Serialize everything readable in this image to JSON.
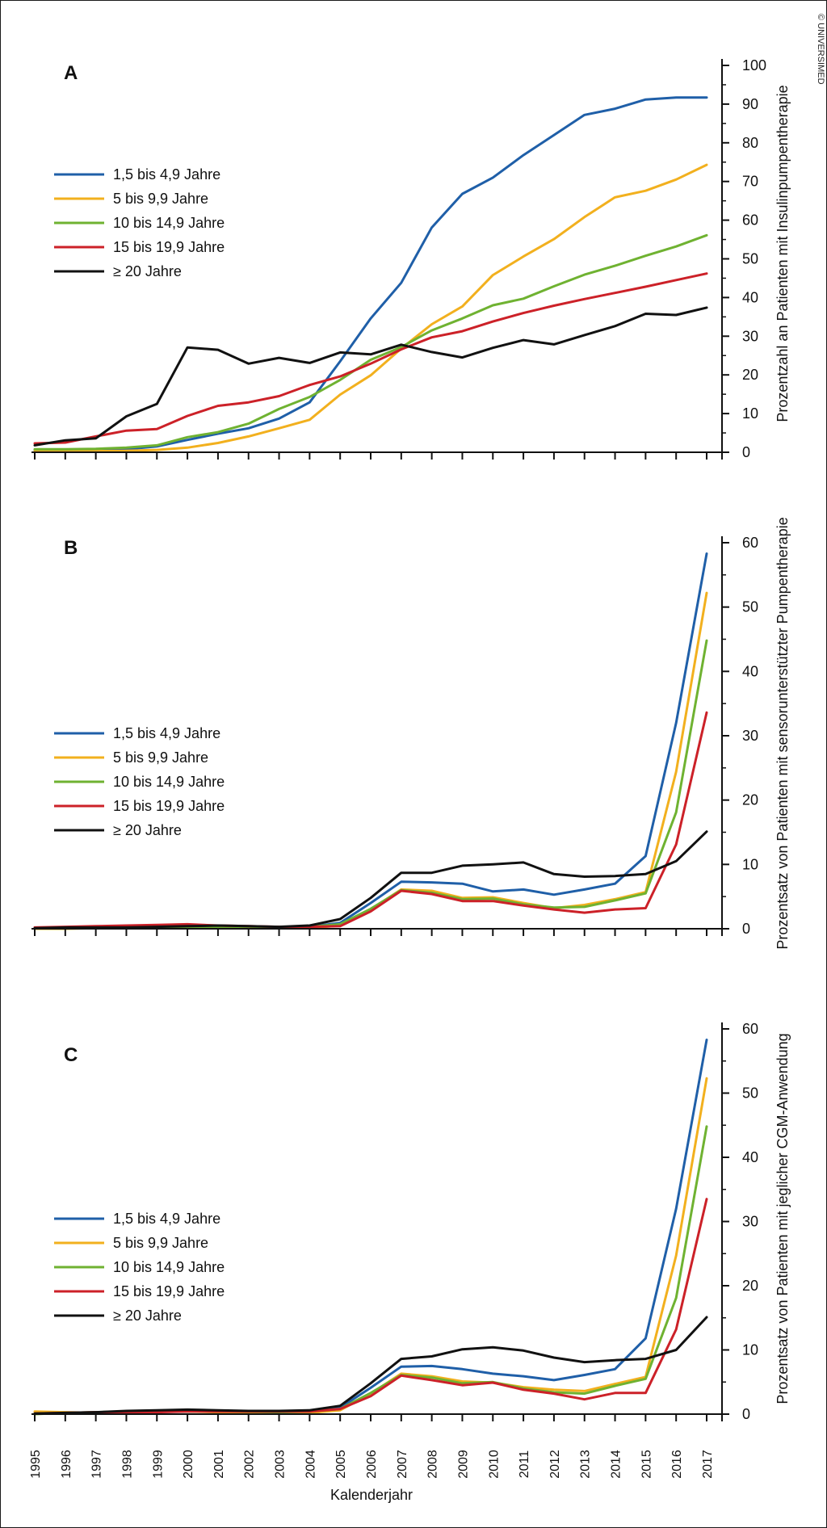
{
  "copyright": "© UNIVERSIMED",
  "chart_data": [
    {
      "type": "line",
      "panel": "A",
      "ylabel": "Prozentzahl an Patienten mit Insulinpumpentherapie",
      "xlabel": "",
      "ylim": [
        0,
        100
      ],
      "yticks": [
        0,
        10,
        20,
        30,
        40,
        50,
        60,
        70,
        80,
        90,
        100
      ],
      "legend_position": "left",
      "x": [
        1995,
        1996,
        1997,
        1998,
        1999,
        2000,
        2001,
        2002,
        2003,
        2004,
        2005,
        2006,
        2007,
        2008,
        2009,
        2010,
        2011,
        2012,
        2013,
        2014,
        2015,
        2016,
        2017
      ],
      "series": [
        {
          "name": "1,5 bis 4,9 Jahre",
          "color": "#1f5fa8",
          "values": [
            0.5,
            0.5,
            0.5,
            0.8,
            1.5,
            3.2,
            4.8,
            6.2,
            8.7,
            12.9,
            23.5,
            34.6,
            43.8,
            58.1,
            66.8,
            71.0,
            76.8,
            82.0,
            87.2,
            88.8,
            91.2,
            91.7,
            91.7
          ]
        },
        {
          "name": "5 bis 9,9 Jahre",
          "color": "#f2b01e",
          "values": [
            0.3,
            0.3,
            0.3,
            0.4,
            0.6,
            1.2,
            2.4,
            4.1,
            6.2,
            8.4,
            14.9,
            19.9,
            26.8,
            33.1,
            37.7,
            45.8,
            50.6,
            55.1,
            60.8,
            65.9,
            67.6,
            70.5,
            74.3
          ]
        },
        {
          "name": "10 bis 14,9 Jahre",
          "color": "#6fb231",
          "values": [
            0.8,
            0.8,
            0.9,
            1.2,
            1.8,
            3.9,
            5.2,
            7.4,
            11.2,
            14.3,
            18.7,
            23.9,
            27.2,
            31.5,
            34.6,
            38.0,
            39.7,
            42.9,
            45.9,
            48.2,
            50.8,
            53.2,
            56.1
          ]
        },
        {
          "name": "15 bis 19,9 Jahre",
          "color": "#cc2128",
          "values": [
            2.3,
            2.5,
            4.1,
            5.6,
            6.0,
            9.4,
            12.0,
            12.9,
            14.5,
            17.4,
            19.6,
            22.9,
            26.6,
            29.7,
            31.3,
            33.8,
            36.0,
            37.9,
            39.6,
            41.2,
            42.8,
            44.5,
            46.2
          ]
        },
        {
          "name": "≥ 20 Jahre",
          "color": "#111111",
          "values": [
            1.8,
            3.1,
            3.6,
            9.3,
            12.5,
            27.1,
            26.5,
            22.9,
            24.4,
            23.1,
            25.8,
            25.3,
            27.8,
            25.9,
            24.5,
            27.0,
            29.0,
            27.9,
            30.3,
            32.6,
            35.8,
            35.5,
            37.4
          ]
        }
      ]
    },
    {
      "type": "line",
      "panel": "B",
      "ylabel": "Prozentsatz von Patienten mit sensorunterstützter Pumpentherapie",
      "xlabel": "",
      "ylim": [
        0,
        60
      ],
      "yticks": [
        0,
        10,
        20,
        30,
        40,
        50,
        60
      ],
      "legend_position": "left",
      "x": [
        1995,
        1996,
        1997,
        1998,
        1999,
        2000,
        2001,
        2002,
        2003,
        2004,
        2005,
        2006,
        2007,
        2008,
        2009,
        2010,
        2011,
        2012,
        2013,
        2014,
        2015,
        2016,
        2017
      ],
      "series": [
        {
          "name": "1,5 bis 4,9 Jahre",
          "color": "#1f5fa8",
          "values": [
            0.0,
            0.1,
            0.1,
            0.1,
            0.1,
            0.1,
            0.2,
            0.2,
            0.2,
            0.3,
            0.9,
            4.0,
            7.3,
            7.2,
            7.0,
            5.8,
            6.1,
            5.3,
            6.1,
            7.0,
            11.3,
            32.0,
            58.3
          ]
        },
        {
          "name": "5 bis 9,9 Jahre",
          "color": "#f2b01e",
          "values": [
            0.0,
            0.0,
            0.1,
            0.1,
            0.1,
            0.1,
            0.1,
            0.1,
            0.1,
            0.1,
            0.5,
            3.0,
            6.1,
            5.9,
            4.8,
            4.9,
            4.0,
            3.2,
            3.7,
            4.6,
            5.7,
            24.4,
            52.2
          ]
        },
        {
          "name": "10 bis 14,9 Jahre",
          "color": "#6fb231",
          "values": [
            0.1,
            0.1,
            0.1,
            0.1,
            0.2,
            0.2,
            0.2,
            0.2,
            0.2,
            0.3,
            0.7,
            3.1,
            6.0,
            5.6,
            4.6,
            4.7,
            3.8,
            3.3,
            3.4,
            4.4,
            5.5,
            18.1,
            44.8
          ]
        },
        {
          "name": "15 bis 19,9 Jahre",
          "color": "#cc2128",
          "values": [
            0.2,
            0.3,
            0.4,
            0.5,
            0.6,
            0.7,
            0.5,
            0.4,
            0.3,
            0.3,
            0.4,
            2.7,
            5.9,
            5.4,
            4.3,
            4.3,
            3.6,
            3.0,
            2.5,
            3.0,
            3.2,
            13.1,
            33.6
          ]
        },
        {
          "name": "≥ 20 Jahre",
          "color": "#111111",
          "values": [
            0.1,
            0.2,
            0.2,
            0.2,
            0.3,
            0.4,
            0.5,
            0.4,
            0.3,
            0.5,
            1.5,
            4.8,
            8.7,
            8.7,
            9.8,
            10.0,
            10.3,
            8.5,
            8.1,
            8.2,
            8.5,
            10.5,
            15.1
          ]
        }
      ]
    },
    {
      "type": "line",
      "panel": "C",
      "ylabel": "Prozentsatz von Patienten mit jeglicher CGM-Anwendung",
      "xlabel": "Kalenderjahr",
      "ylim": [
        0,
        60
      ],
      "yticks": [
        0,
        10,
        20,
        30,
        40,
        50,
        60
      ],
      "legend_position": "left",
      "x": [
        1995,
        1996,
        1997,
        1998,
        1999,
        2000,
        2001,
        2002,
        2003,
        2004,
        2005,
        2006,
        2007,
        2008,
        2009,
        2010,
        2011,
        2012,
        2013,
        2014,
        2015,
        2016,
        2017
      ],
      "series": [
        {
          "name": "1,5 bis 4,9 Jahre",
          "color": "#1f5fa8",
          "values": [
            0.1,
            0.2,
            0.2,
            0.3,
            0.4,
            0.4,
            0.4,
            0.3,
            0.3,
            0.3,
            1.0,
            4.1,
            7.4,
            7.5,
            7.0,
            6.3,
            5.9,
            5.3,
            6.1,
            7.0,
            11.8,
            32.0,
            58.3
          ]
        },
        {
          "name": "5 bis 9,9 Jahre",
          "color": "#f2b01e",
          "values": [
            0.4,
            0.3,
            0.2,
            0.3,
            0.4,
            0.4,
            0.3,
            0.3,
            0.2,
            0.2,
            0.6,
            3.2,
            6.3,
            5.9,
            5.1,
            4.9,
            4.2,
            3.8,
            3.6,
            4.7,
            5.8,
            24.7,
            52.3
          ]
        },
        {
          "name": "10 bis 14,9 Jahre",
          "color": "#6fb231",
          "values": [
            0.0,
            0.2,
            0.3,
            0.4,
            0.5,
            0.5,
            0.4,
            0.4,
            0.3,
            0.4,
            0.8,
            3.3,
            6.1,
            5.7,
            4.8,
            5.0,
            4.0,
            3.4,
            3.2,
            4.4,
            5.5,
            18.1,
            44.8
          ]
        },
        {
          "name": "15 bis 19,9 Jahre",
          "color": "#cc2128",
          "values": [
            0.1,
            0.2,
            0.3,
            0.3,
            0.3,
            0.4,
            0.4,
            0.4,
            0.4,
            0.4,
            0.8,
            2.8,
            6.0,
            5.3,
            4.5,
            4.9,
            3.8,
            3.2,
            2.3,
            3.3,
            3.3,
            13.2,
            33.5
          ]
        },
        {
          "name": "≥ 20 Jahre",
          "color": "#111111",
          "values": [
            0.1,
            0.2,
            0.3,
            0.5,
            0.6,
            0.7,
            0.6,
            0.5,
            0.5,
            0.6,
            1.3,
            4.8,
            8.6,
            9.0,
            10.1,
            10.4,
            9.9,
            8.8,
            8.1,
            8.4,
            8.6,
            10.0,
            15.1
          ]
        }
      ]
    }
  ]
}
